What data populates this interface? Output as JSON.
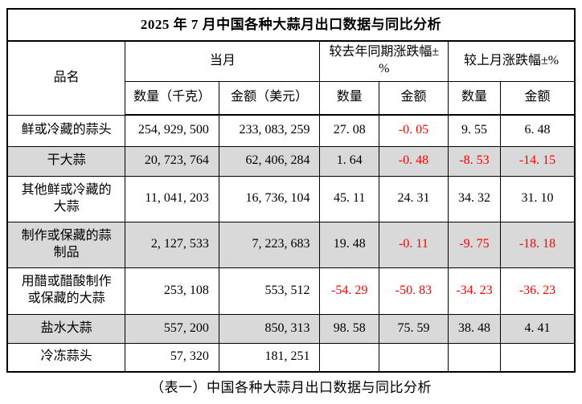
{
  "title": "2025 年 7 月中国各种大蒜月出口数据与同比分析",
  "caption": "（表一）中国各种大蒜月出口数据与同比分析",
  "colors": {
    "negative_value": "#ff0000",
    "shaded_row": "#d9d9d9",
    "border": "#000000",
    "background": "#ffffff"
  },
  "header": {
    "product": "品名",
    "current_month": "当月",
    "yoy": "较去年同期涨跌幅±%",
    "mom": "较上月涨跌幅±%",
    "qty_kg": "数量（千克）",
    "amt_usd": "金额（美元）",
    "qty": "数量",
    "amt": "金额"
  },
  "rows": [
    {
      "name": "鲜或冷藏的蒜头",
      "qty": "254, 929, 500",
      "amt": "233, 083, 259",
      "yoy_qty": "27. 08",
      "yoy_amt": "-0. 05",
      "mom_qty": "9. 55",
      "mom_amt": "6. 48",
      "shaded": false
    },
    {
      "name": "干大蒜",
      "qty": "20, 723, 764",
      "amt": "62, 406, 284",
      "yoy_qty": "1. 64",
      "yoy_amt": "-0. 48",
      "mom_qty": "-8. 53",
      "mom_amt": "-14. 15",
      "shaded": true
    },
    {
      "name": "其他鲜或冷藏的大蒜",
      "qty": "11, 041, 203",
      "amt": "16, 736, 104",
      "yoy_qty": "45. 11",
      "yoy_amt": "24. 31",
      "mom_qty": "34. 32",
      "mom_amt": "31. 10",
      "shaded": false
    },
    {
      "name": "制作或保藏的蒜制品",
      "qty": "2, 127, 533",
      "amt": "7, 223, 683",
      "yoy_qty": "19. 48",
      "yoy_amt": "-0. 11",
      "mom_qty": "-9. 75",
      "mom_amt": "-18. 18",
      "shaded": true
    },
    {
      "name": "用醋或醋酸制作或保藏的大蒜",
      "qty": "253, 108",
      "amt": "553, 512",
      "yoy_qty": "-54. 29",
      "yoy_amt": "-50. 83",
      "mom_qty": "-34. 23",
      "mom_amt": "-36. 23",
      "shaded": false
    },
    {
      "name": "盐水大蒜",
      "qty": "557, 200",
      "amt": "850, 313",
      "yoy_qty": "98. 58",
      "yoy_amt": "75. 59",
      "mom_qty": "38. 48",
      "mom_amt": "4. 41",
      "shaded": true
    },
    {
      "name": "冷冻蒜头",
      "qty": "57, 320",
      "amt": "181, 251",
      "yoy_qty": "",
      "yoy_amt": "",
      "mom_qty": "",
      "mom_amt": "",
      "shaded": false
    }
  ]
}
